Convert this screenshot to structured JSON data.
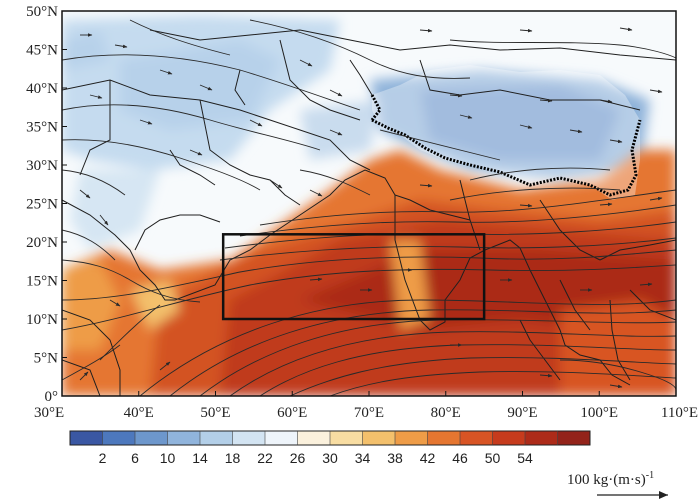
{
  "map": {
    "lon_labels": [
      "30°E",
      "40°E",
      "50°E",
      "60°E",
      "70°E",
      "80°E",
      "90°E",
      "100°E",
      "110°E"
    ],
    "lat_labels": [
      "0°",
      "5°N",
      "10°N",
      "15°N",
      "20°N",
      "25°N",
      "30°N",
      "35°N",
      "40°N",
      "45°N",
      "50°N"
    ],
    "lon_range": [
      30,
      110
    ],
    "lat_range": [
      0,
      50
    ],
    "box_region": {
      "lon": [
        51,
        85
      ],
      "lat": [
        10,
        21
      ]
    },
    "colorbar_ticks": [
      "2",
      "6",
      "10",
      "14",
      "18",
      "22",
      "26",
      "30",
      "34",
      "38",
      "42",
      "46",
      "50",
      "54"
    ],
    "colorbar_colors": [
      "#3a57a3",
      "#4d78bd",
      "#6d97cc",
      "#90b4dc",
      "#b3cfe8",
      "#d3e4f2",
      "#eef4fa",
      "#fbf1dd",
      "#f8dda2",
      "#f3c06c",
      "#ee9c47",
      "#e57630",
      "#d85424",
      "#c63b1d",
      "#ad2b19",
      "#93231a"
    ],
    "reference_vector_label": "100 kg·(m·s)",
    "reference_vector_exp": "-1",
    "style_colors": {
      "box": "#111111",
      "streamline": "#2a2a2a",
      "border": "#1f1f1f",
      "plateau_edge": "#000000"
    }
  }
}
